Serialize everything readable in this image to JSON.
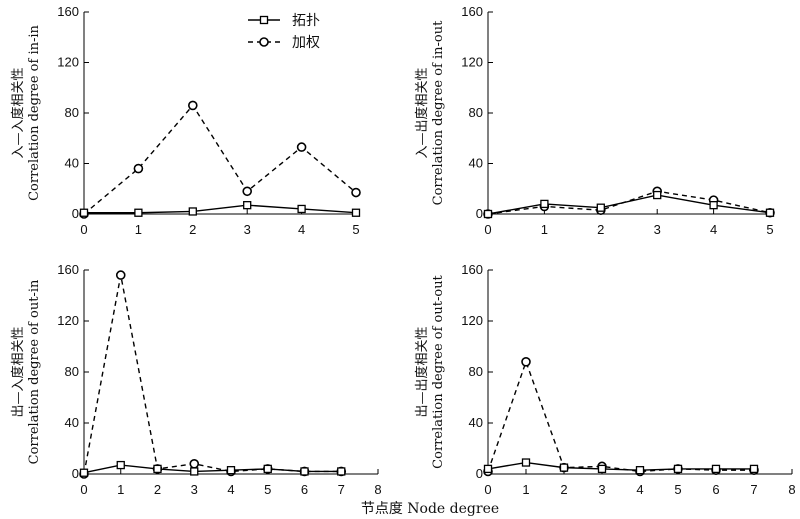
{
  "figure": {
    "xlabel": "节点度 Node degree",
    "legend": [
      {
        "label": "拓扑",
        "style": "solid",
        "marker": "square"
      },
      {
        "label": "加权",
        "style": "dashed",
        "marker": "circle"
      }
    ]
  },
  "chart_data": [
    {
      "type": "line",
      "ylabel_cn": "入—入度相关性",
      "ylabel_en": "Correlation degree of in-in",
      "xlim": [
        0,
        5
      ],
      "ylim": [
        0,
        160
      ],
      "xticks": [
        "0",
        "1",
        "2",
        "3",
        "4",
        "5"
      ],
      "yticks": [
        "0",
        "40",
        "80",
        "120",
        "160"
      ],
      "legend_position": "top-center",
      "series": [
        {
          "name": "拓扑",
          "x": [
            0,
            1,
            2,
            3,
            4,
            5
          ],
          "values": [
            1,
            1,
            2,
            7,
            4,
            1
          ]
        },
        {
          "name": "加权",
          "x": [
            0,
            1,
            2,
            3,
            4,
            5
          ],
          "values": [
            0,
            36,
            86,
            18,
            53,
            17
          ]
        }
      ]
    },
    {
      "type": "line",
      "ylabel_cn": "入—出度相关性",
      "ylabel_en": "Correlation degree of in-out",
      "xlim": [
        0,
        5
      ],
      "ylim": [
        0,
        160
      ],
      "xticks": [
        "0",
        "1",
        "2",
        "3",
        "4",
        "5"
      ],
      "yticks": [
        "0",
        "40",
        "80",
        "120",
        "160"
      ],
      "series": [
        {
          "name": "拓扑",
          "x": [
            0,
            1,
            2,
            3,
            4,
            5
          ],
          "values": [
            0,
            8,
            5,
            15,
            7,
            1
          ]
        },
        {
          "name": "加权",
          "x": [
            0,
            1,
            2,
            3,
            4,
            5
          ],
          "values": [
            0,
            6,
            3,
            18,
            11,
            1
          ]
        }
      ]
    },
    {
      "type": "line",
      "ylabel_cn": "出—入度相关性",
      "ylabel_en": "Correlation degree of out-in",
      "xlim": [
        0,
        8
      ],
      "ylim": [
        0,
        160
      ],
      "xticks": [
        "0",
        "1",
        "2",
        "3",
        "4",
        "5",
        "6",
        "7",
        "8"
      ],
      "yticks": [
        "0",
        "40",
        "80",
        "120",
        "160"
      ],
      "series": [
        {
          "name": "拓扑",
          "x": [
            0,
            1,
            2,
            3,
            4,
            5,
            6,
            7
          ],
          "values": [
            1,
            7,
            4,
            2,
            3,
            4,
            2,
            2
          ]
        },
        {
          "name": "加权",
          "x": [
            0,
            1,
            2,
            3,
            4,
            5,
            6,
            7
          ],
          "values": [
            0,
            156,
            4,
            8,
            2,
            4,
            2,
            2
          ]
        }
      ]
    },
    {
      "type": "line",
      "ylabel_cn": "出—出度相关性",
      "ylabel_en": "Correlation degree of out-out",
      "xlim": [
        0,
        8
      ],
      "ylim": [
        0,
        160
      ],
      "xticks": [
        "0",
        "1",
        "2",
        "3",
        "4",
        "5",
        "6",
        "7",
        "8"
      ],
      "yticks": [
        "0",
        "40",
        "80",
        "120",
        "160"
      ],
      "series": [
        {
          "name": "拓扑",
          "x": [
            0,
            1,
            2,
            3,
            4,
            5,
            6,
            7
          ],
          "values": [
            4,
            9,
            5,
            4,
            3,
            4,
            4,
            4
          ]
        },
        {
          "name": "加权",
          "x": [
            0,
            1,
            2,
            3,
            4,
            5,
            6,
            7
          ],
          "values": [
            2,
            88,
            5,
            6,
            2,
            4,
            3,
            3
          ]
        }
      ]
    }
  ]
}
